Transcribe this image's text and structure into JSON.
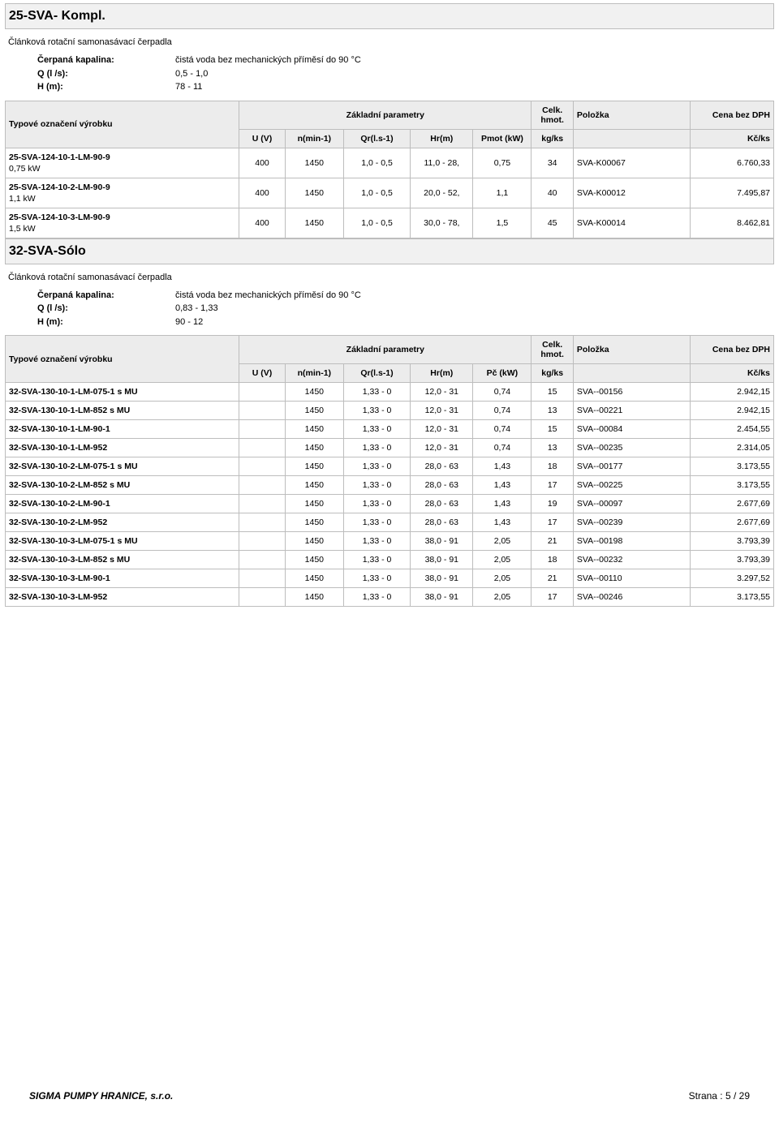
{
  "sections": [
    {
      "title": "25-SVA- Kompl.",
      "subtitle": "Článková rotační samonasávací čerpadla",
      "specs": [
        {
          "label": "Čerpaná kapalina:",
          "value": "čistá voda bez mechanických příměsí do 90 °C"
        },
        {
          "label": "Q (l /s):",
          "value": "0,5 - 1,0"
        },
        {
          "label": "H (m):",
          "value": "78 - 11"
        }
      ],
      "tableHead": {
        "name": "Typové označení výrobku",
        "base": "Základní parametry",
        "celk": "Celk. hmot.",
        "polozka": "Položka",
        "cena": "Cena bez DPH",
        "sub": {
          "u": "U (V)",
          "n": "n(min-1)",
          "qr": "Qr(l.s-1)",
          "hr": "Hr(m)",
          "p": "Pmot (kW)",
          "kg": "kg/ks",
          "price": "Kč/ks"
        }
      },
      "rows": [
        {
          "name": "25-SVA-124-10-1-LM-90-9",
          "sub": "0,75 kW",
          "u": "400",
          "n": "1450",
          "qr": "1,0 -  0,5",
          "hr": "11,0 - 28,",
          "p": "0,75",
          "kg": "34",
          "pol": "SVA-K00067",
          "price": "6.760,33"
        },
        {
          "name": "25-SVA-124-10-2-LM-90-9",
          "sub": "1,1 kW",
          "u": "400",
          "n": "1450",
          "qr": "1,0 -  0,5",
          "hr": "20,0 - 52,",
          "p": "1,1",
          "kg": "40",
          "pol": "SVA-K00012",
          "price": "7.495,87"
        },
        {
          "name": "25-SVA-124-10-3-LM-90-9",
          "sub": "1,5 kW",
          "u": "400",
          "n": "1450",
          "qr": "1,0 -  0,5",
          "hr": "30,0 - 78,",
          "p": "1,5",
          "kg": "45",
          "pol": "SVA-K00014",
          "price": "8.462,81"
        }
      ]
    },
    {
      "title": "32-SVA-Sólo",
      "subtitle": "Článková rotační samonasávací čerpadla",
      "specs": [
        {
          "label": "Čerpaná kapalina:",
          "value": "čistá voda bez mechanických příměsí do 90 °C"
        },
        {
          "label": "Q (l /s):",
          "value": "0,83 - 1,33"
        },
        {
          "label": "H (m):",
          "value": "90 - 12"
        }
      ],
      "tableHead": {
        "name": "Typové označení výrobku",
        "base": "Základní parametry",
        "celk": "Celk. hmot.",
        "polozka": "Položka",
        "cena": "Cena bez DPH",
        "sub": {
          "u": "U (V)",
          "n": "n(min-1)",
          "qr": "Qr(l.s-1)",
          "hr": "Hr(m)",
          "p": "Pč (kW)",
          "kg": "kg/ks",
          "price": "Kč/ks"
        }
      },
      "rows": [
        {
          "name": "32-SVA-130-10-1-LM-075-1 s MU",
          "sub": "",
          "u": "",
          "n": "1450",
          "qr": "1,33 -  0",
          "hr": "12,0  - 31",
          "p": "0,74",
          "kg": "15",
          "pol": "SVA--00156",
          "price": "2.942,15"
        },
        {
          "name": "32-SVA-130-10-1-LM-852 s MU",
          "sub": "",
          "u": "",
          "n": "1450",
          "qr": "1,33 -  0",
          "hr": "12,0  - 31",
          "p": "0,74",
          "kg": "13",
          "pol": "SVA--00221",
          "price": "2.942,15"
        },
        {
          "name": "32-SVA-130-10-1-LM-90-1",
          "sub": "",
          "u": "",
          "n": "1450",
          "qr": "1,33 -  0",
          "hr": "12,0  - 31",
          "p": "0,74",
          "kg": "15",
          "pol": "SVA--00084",
          "price": "2.454,55"
        },
        {
          "name": "32-SVA-130-10-1-LM-952",
          "sub": "",
          "u": "",
          "n": "1450",
          "qr": "1,33 -  0",
          "hr": "12,0  - 31",
          "p": "0,74",
          "kg": "13",
          "pol": "SVA--00235",
          "price": "2.314,05"
        },
        {
          "name": "32-SVA-130-10-2-LM-075-1 s MU",
          "sub": "",
          "u": "",
          "n": "1450",
          "qr": "1,33 -  0",
          "hr": "28,0  - 63",
          "p": "1,43",
          "kg": "18",
          "pol": "SVA--00177",
          "price": "3.173,55"
        },
        {
          "name": "32-SVA-130-10-2-LM-852 s MU",
          "sub": "",
          "u": "",
          "n": "1450",
          "qr": "1,33 -  0",
          "hr": "28,0  - 63",
          "p": "1,43",
          "kg": "17",
          "pol": "SVA--00225",
          "price": "3.173,55"
        },
        {
          "name": "32-SVA-130-10-2-LM-90-1",
          "sub": "",
          "u": "",
          "n": "1450",
          "qr": "1,33 -  0",
          "hr": "28,0  - 63",
          "p": "1,43",
          "kg": "19",
          "pol": "SVA--00097",
          "price": "2.677,69"
        },
        {
          "name": "32-SVA-130-10-2-LM-952",
          "sub": "",
          "u": "",
          "n": "1450",
          "qr": "1,33 -  0",
          "hr": "28,0  - 63",
          "p": "1,43",
          "kg": "17",
          "pol": "SVA--00239",
          "price": "2.677,69"
        },
        {
          "name": "32-SVA-130-10-3-LM-075-1 s MU",
          "sub": "",
          "u": "",
          "n": "1450",
          "qr": "1,33 -  0",
          "hr": "38,0  - 91",
          "p": "2,05",
          "kg": "21",
          "pol": "SVA--00198",
          "price": "3.793,39"
        },
        {
          "name": "32-SVA-130-10-3-LM-852 s MU",
          "sub": "",
          "u": "",
          "n": "1450",
          "qr": "1,33 -  0",
          "hr": "38,0  - 91",
          "p": "2,05",
          "kg": "18",
          "pol": "SVA--00232",
          "price": "3.793,39"
        },
        {
          "name": "32-SVA-130-10-3-LM-90-1",
          "sub": "",
          "u": "",
          "n": "1450",
          "qr": "1,33 -  0",
          "hr": "38,0  - 91",
          "p": "2,05",
          "kg": "21",
          "pol": "SVA--00110",
          "price": "3.297,52"
        },
        {
          "name": "32-SVA-130-10-3-LM-952",
          "sub": "",
          "u": "",
          "n": "1450",
          "qr": "1,33 -  0",
          "hr": "38,0  - 91",
          "p": "2,05",
          "kg": "17",
          "pol": "SVA--00246",
          "price": "3.173,55"
        }
      ]
    }
  ],
  "footer": {
    "company": "SIGMA PUMPY HRANICE, s.r.o.",
    "pageLabel": "Strana : 5 / 29"
  }
}
